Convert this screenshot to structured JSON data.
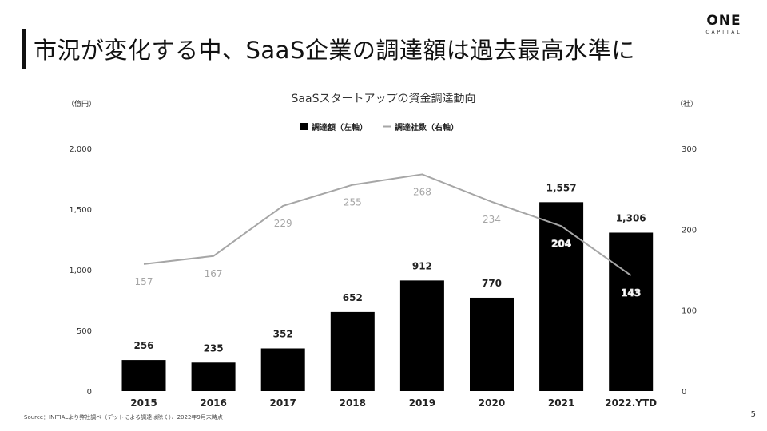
{
  "slide": {
    "title": "市況が変化する中、SaaS企業の調達額は過去最高水準に",
    "logo_main": "ONE",
    "logo_sub": "CAPITAL",
    "source": "Source：INITIALより弊社調べ（デットによる調達は除く）、2022年9月末時点",
    "page_number": "5"
  },
  "chart_data": {
    "type": "bar",
    "title": "SaaSスタートアップの資金調達動向",
    "categories": [
      "2015",
      "2016",
      "2017",
      "2018",
      "2019",
      "2020",
      "2021",
      "2022.YTD"
    ],
    "series": [
      {
        "name": "調達額（左軸）",
        "type": "bar",
        "axis": "left",
        "values": [
          256,
          235,
          352,
          652,
          912,
          770,
          1557,
          1306
        ],
        "labels": [
          "256",
          "235",
          "352",
          "652",
          "912",
          "770",
          "1,557",
          "1,306"
        ],
        "color": "#000000"
      },
      {
        "name": "調達社数（右軸）",
        "type": "line",
        "axis": "right",
        "values": [
          157,
          167,
          229,
          255,
          268,
          234,
          204,
          143
        ],
        "labels": [
          "157",
          "167",
          "229",
          "255",
          "268",
          "234",
          "204",
          "143"
        ],
        "color": "#a6a6a6"
      }
    ],
    "y_left": {
      "unit": "（億円）",
      "min": 0,
      "max": 2000,
      "ticks": [
        "0",
        "500",
        "1,000",
        "1,500",
        "2,000"
      ]
    },
    "y_right": {
      "unit": "（社）",
      "min": 0,
      "max": 300,
      "ticks": [
        "0",
        "100",
        "200",
        "300"
      ]
    },
    "grid": false,
    "legend_position": "top-center"
  }
}
